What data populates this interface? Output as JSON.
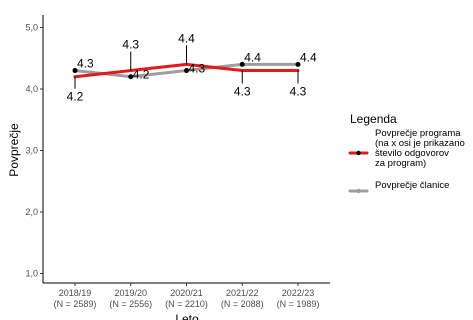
{
  "chart_data": {
    "type": "line",
    "xlabel": "Leto",
    "ylabel": "Povprečje",
    "ylim": [
      1.0,
      5.0
    ],
    "yticks": [
      "1,0",
      "2,0",
      "3,0",
      "4,0",
      "5,0"
    ],
    "categories": [
      [
        "2018/19",
        "(N = 2589)"
      ],
      [
        "2019/20",
        "(N = 2556)"
      ],
      [
        "2020/21",
        "(N = 2210)"
      ],
      [
        "2021/22",
        "(N = 2088)"
      ],
      [
        "2022/23",
        "(N = 1989)"
      ]
    ],
    "series": [
      {
        "name": "Povprečje programa (na x osi je prikazano število odgovorov za program)",
        "name_lines": [
          "Povprečje programa",
          "(na x osi je prikazano",
          "število odgovorov",
          "za program)"
        ],
        "color": "#e31a1c",
        "values": [
          4.2,
          4.3,
          4.4,
          4.3,
          4.3
        ],
        "labels": [
          "4.2",
          "4.3",
          "4.4",
          "4.3",
          "4.3"
        ]
      },
      {
        "name": "Povprečje članice",
        "name_lines": [
          "Povprečje članice"
        ],
        "color": "#9e9e9e",
        "values": [
          4.3,
          4.2,
          4.3,
          4.4,
          4.4
        ],
        "labels": [
          "4.3",
          "4.2",
          "4.3",
          "4.4",
          "4.4"
        ]
      }
    ],
    "legend": {
      "title": "Legenda",
      "position": "right"
    },
    "grid": false
  }
}
